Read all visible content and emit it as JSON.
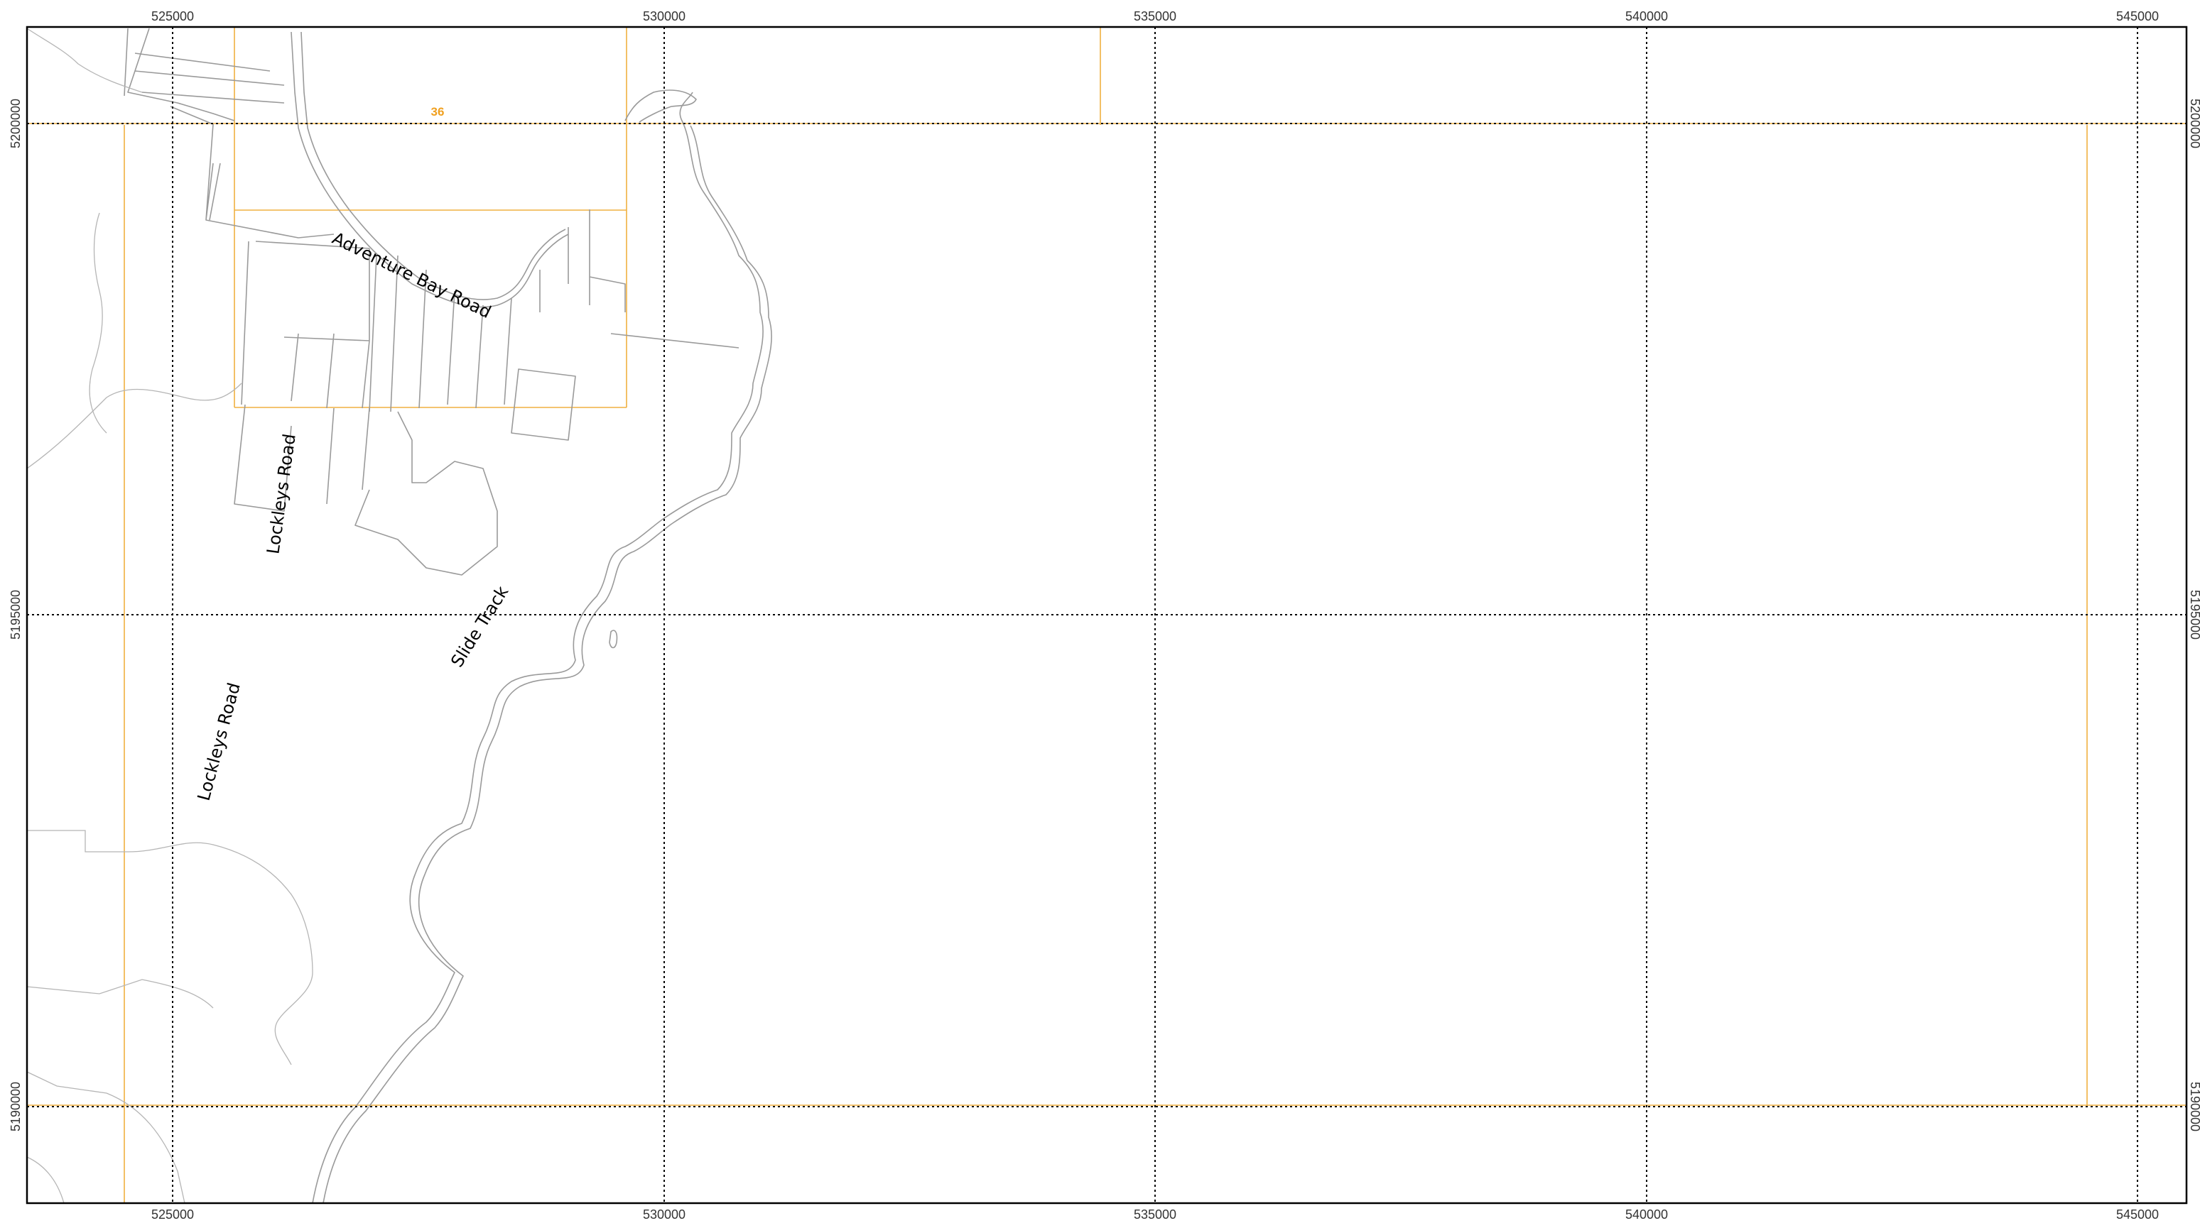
{
  "map": {
    "grid": {
      "eastings": [
        525000,
        530000,
        535000,
        540000,
        545000
      ],
      "northings": [
        5200000,
        5195000,
        5190000
      ],
      "easting_labels": [
        "525000",
        "530000",
        "535000",
        "540000",
        "545000"
      ],
      "northing_labels": [
        "5200000",
        "5195000",
        "5190000"
      ]
    },
    "map_sheet_label": "36",
    "road_labels": {
      "adventure_bay_road": "Adventure Bay Road",
      "lockleys_road_north": "Lockleys Road",
      "lockleys_road_south": "Lockleys Road",
      "slide_track": "Slide Track"
    },
    "colors": {
      "grid": "#000000",
      "map_sheet_boundary": "#f0b040",
      "features": "#9a9a9a",
      "frame": "#000000"
    }
  }
}
